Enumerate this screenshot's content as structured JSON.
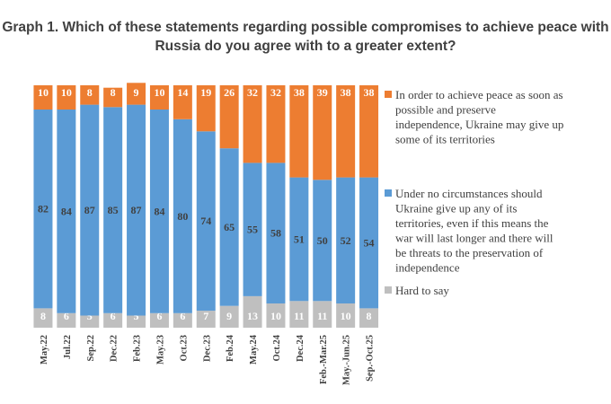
{
  "chart_data": {
    "type": "bar",
    "stacked": true,
    "title_line1": "Graph 1. Which of these statements regarding possible compromises to achieve peace with",
    "title_line2": "Russia do you agree with to a greater extent?",
    "categories": [
      "May.22",
      "Jul.22",
      "Sep.22",
      "Dec.22",
      "Feb.23",
      "May.23",
      "Oct.23",
      "Dec.23",
      "Feb.24",
      "May.24",
      "Oct.24",
      "Dec.24",
      "Feb.-Mar.25",
      "May.-Jun.25",
      "Sep.-Oct.25"
    ],
    "ylim": [
      0,
      100
    ],
    "series": [
      {
        "name": "Hard to say",
        "color": "#bfbfbf",
        "label_color": "#ffffff",
        "values": [
          8,
          6,
          5,
          6,
          5,
          6,
          6,
          7,
          9,
          13,
          10,
          11,
          11,
          10,
          8
        ],
        "legend_lines": [
          "Hard to say"
        ]
      },
      {
        "name": "Under no circumstances should Ukraine give up any of its territories, even if this means the war will last longer and there will be threats to the preservation of independence",
        "color": "#5b9bd5",
        "label_color": "#404040",
        "values": [
          82,
          84,
          87,
          85,
          87,
          84,
          80,
          74,
          65,
          55,
          58,
          51,
          50,
          52,
          54
        ],
        "legend_lines": [
          "Under no circumstances should",
          "Ukraine give up any of its",
          "territories, even if this means the",
          "war will last longer and there will",
          "be threats to the preservation of",
          "independence"
        ]
      },
      {
        "name": "In order to achieve peace as soon as possible and preserve independence, Ukraine may give up some of its territories",
        "color": "#ed7d31",
        "label_color": "#ffffff",
        "values": [
          10,
          10,
          8,
          8,
          9,
          10,
          14,
          19,
          26,
          32,
          32,
          38,
          39,
          38,
          38
        ],
        "legend_lines": [
          "In order to achieve peace as soon as",
          "possible and preserve",
          "independence, Ukraine may give up",
          "some of its territories"
        ]
      }
    ],
    "legend_order": [
      2,
      1,
      0
    ],
    "legend_position": "right"
  }
}
